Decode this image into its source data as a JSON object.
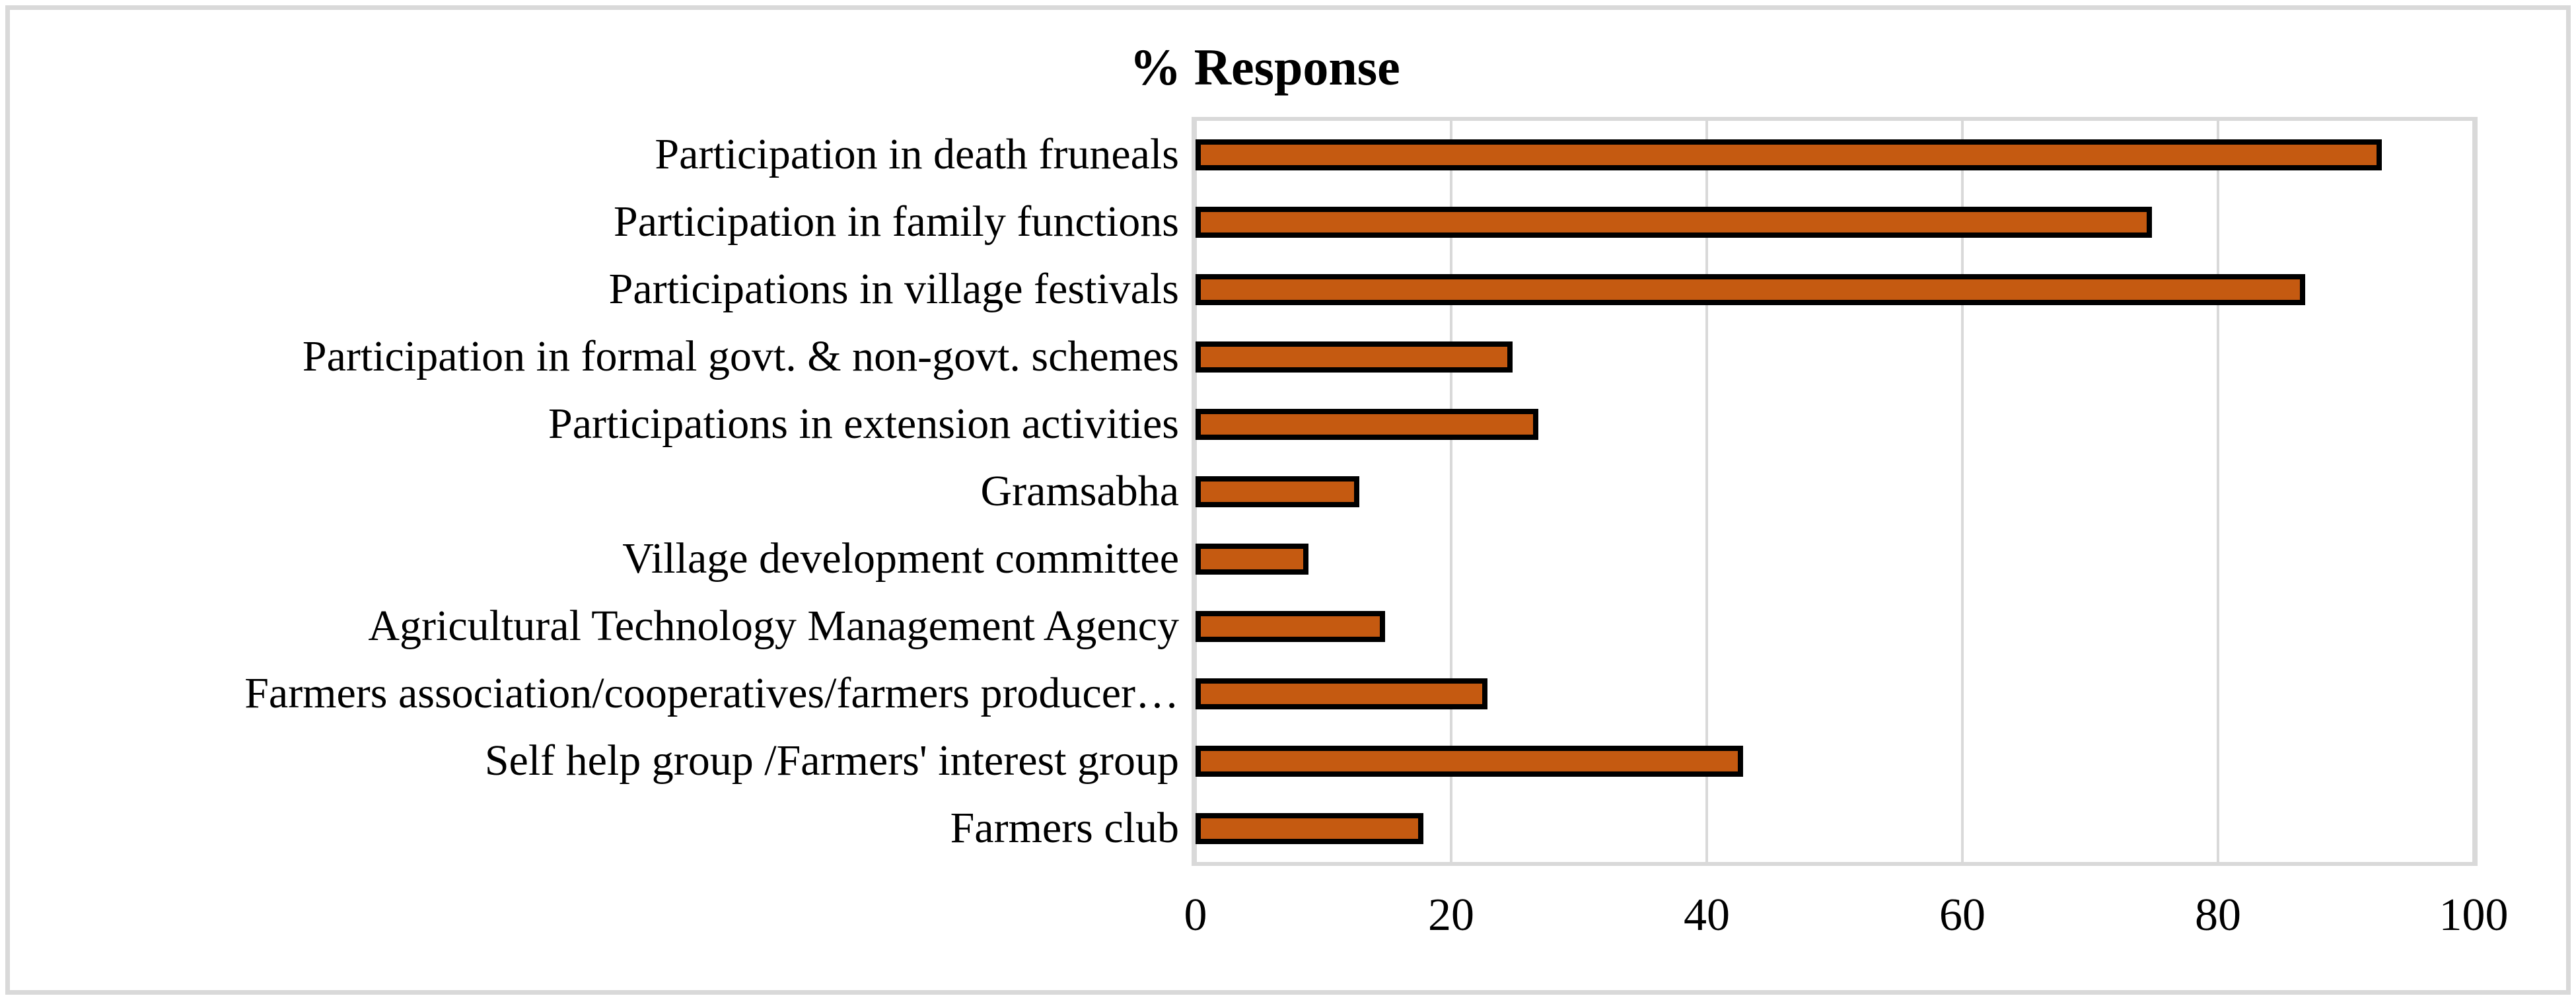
{
  "chart_data": {
    "type": "bar",
    "orientation": "horizontal",
    "title": "% Response",
    "categories": [
      "Participation in death fruneals",
      "Participation in family functions",
      "Participations in village festivals",
      "Participation in formal govt. & non-govt. schemes",
      "Participations in extension activities",
      "Gramsabha",
      "Village development committee",
      "Agricultural Technology Management Agency",
      "Farmers association/cooperatives/farmers producer…",
      "Self help group /Farmers' interest group",
      "Farmers club"
    ],
    "values": [
      92,
      74,
      86,
      24,
      26,
      12,
      8,
      14,
      22,
      42,
      17
    ],
    "xlabel": "",
    "ylabel": "",
    "xlim": [
      0,
      100
    ],
    "x_ticks": [
      0,
      20,
      40,
      60,
      80,
      100
    ],
    "grid": "vertical-gridlines-on",
    "legend_position": "none",
    "bar_fill_color": "#C55A11",
    "bar_border_color": "#000000",
    "gridline_color": "#D9D9D9",
    "plot_border_color": "#D9D9D9",
    "outer_border_color": "#D9D9D9"
  }
}
